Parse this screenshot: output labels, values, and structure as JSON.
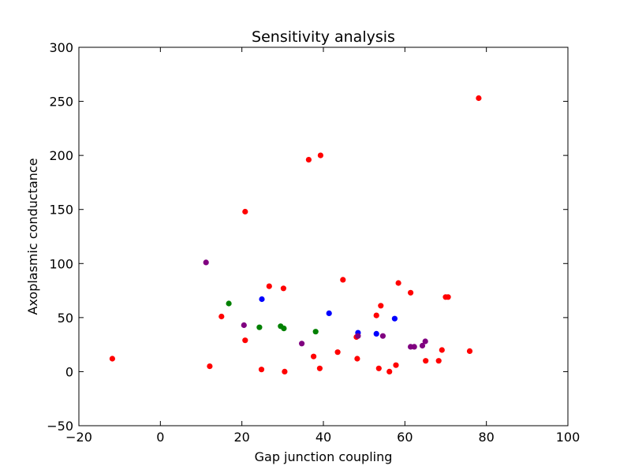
{
  "chart_data": {
    "type": "scatter",
    "title": "Sensitivity analysis",
    "xlabel": "Gap junction coupling",
    "ylabel": "Axoplasmic conductance",
    "xlim": [
      -20,
      100
    ],
    "ylim": [
      -50,
      300
    ],
    "xticks": [
      -20,
      0,
      20,
      40,
      60,
      80,
      100
    ],
    "yticks": [
      -50,
      0,
      50,
      100,
      150,
      200,
      250,
      300
    ],
    "xtick_labels": [
      "−20",
      "0",
      "20",
      "40",
      "60",
      "80",
      "100"
    ],
    "ytick_labels": [
      "−50",
      "0",
      "50",
      "100",
      "150",
      "200",
      "250",
      "300"
    ],
    "grid": false,
    "series": [
      {
        "color": "#ff0000",
        "points": [
          [
            -11.8,
            12
          ],
          [
            12.1,
            5
          ],
          [
            15,
            51
          ],
          [
            20.8,
            148
          ],
          [
            20.8,
            29
          ],
          [
            24.8,
            2
          ],
          [
            26.7,
            79
          ],
          [
            30.2,
            77
          ],
          [
            30.5,
            0
          ],
          [
            36.4,
            196
          ],
          [
            37.6,
            14
          ],
          [
            39.1,
            3
          ],
          [
            39.3,
            200
          ],
          [
            43.5,
            18
          ],
          [
            44.8,
            85
          ],
          [
            48.1,
            32
          ],
          [
            48.3,
            12
          ],
          [
            53,
            52
          ],
          [
            53.6,
            3
          ],
          [
            54.1,
            61
          ],
          [
            56.2,
            0
          ],
          [
            57.8,
            6
          ],
          [
            58.4,
            82
          ],
          [
            61.4,
            73
          ],
          [
            65.1,
            10
          ],
          [
            68.3,
            10
          ],
          [
            69.1,
            20
          ],
          [
            70,
            69
          ],
          [
            70.6,
            69
          ],
          [
            75.9,
            19
          ],
          [
            78.1,
            253
          ]
        ]
      },
      {
        "color": "#0000ff",
        "points": [
          [
            24.9,
            67
          ],
          [
            41.4,
            54
          ],
          [
            48.5,
            36
          ],
          [
            53,
            35
          ],
          [
            57.5,
            49
          ]
        ]
      },
      {
        "color": "#008000",
        "points": [
          [
            16.8,
            63
          ],
          [
            24.3,
            41
          ],
          [
            29.5,
            42
          ],
          [
            30.3,
            40
          ],
          [
            38.1,
            37
          ]
        ]
      },
      {
        "color": "#800080",
        "points": [
          [
            11.2,
            101
          ],
          [
            20.5,
            43
          ],
          [
            34.7,
            26
          ],
          [
            48.5,
            33
          ],
          [
            54.6,
            33
          ],
          [
            61.4,
            23
          ],
          [
            62.3,
            23
          ],
          [
            64.3,
            24
          ],
          [
            65,
            28
          ]
        ]
      }
    ]
  }
}
